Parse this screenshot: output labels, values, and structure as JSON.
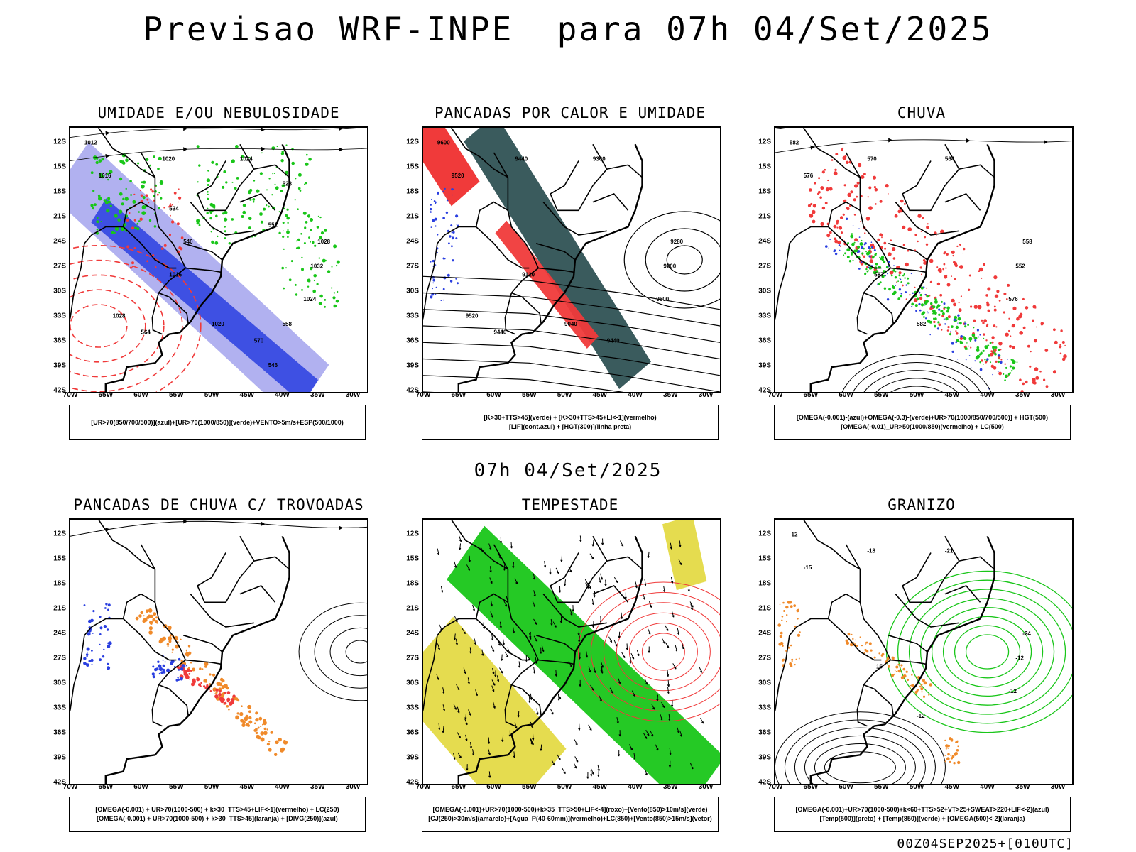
{
  "title": "Previsao WRF-INPE  para 07h 04/Set/2025",
  "subtitle": "07h 04/Set/2025",
  "footer": "00Z04SEP2025+[010UTC]",
  "lat_labels": [
    "12S",
    "15S",
    "18S",
    "21S",
    "24S",
    "27S",
    "30S",
    "33S",
    "36S",
    "39S",
    "42S"
  ],
  "lon_labels": [
    "70W",
    "65W",
    "60W",
    "55W",
    "50W",
    "45W",
    "40W",
    "35W",
    "30W"
  ],
  "colors": {
    "blue": "#2a3fe0",
    "light_blue": "#a9a9ee",
    "green": "#19c619",
    "red": "#f03a3a",
    "orange": "#f08a2a",
    "yellow": "#e2d83c",
    "dark_teal": "#2f5254"
  },
  "panels": [
    {
      "title": "UMIDADE E/OU NEBULOSIDADE",
      "legend": [
        "[UR>70(850/700/500)](azul)+[UR>70(1000/850)](verde)+VENTO>5m/s+ESP(500/1000)"
      ],
      "contour_labels": [
        "1012",
        "1016",
        "1020",
        "1024",
        "1028",
        "1032",
        "1016",
        "1020",
        "1024",
        "1028",
        "564",
        "570",
        "546",
        "540",
        "534",
        "528",
        "552",
        "558"
      ]
    },
    {
      "title": "PANCADAS POR CALOR E UMIDADE",
      "legend": [
        "[K>30+TTS>45](verde) + [K>30+TTS>45+LI<-1](vermelho)",
        "[LIF](cont.azul) + [HGT(300)](linha preta)"
      ],
      "contour_labels": [
        "9600",
        "9520",
        "9440",
        "9360",
        "9280",
        "9200",
        "9120",
        "9040",
        "9600",
        "9520",
        "9440",
        "9440"
      ]
    },
    {
      "title": "CHUVA",
      "legend": [
        "[OMEGA(-0.001)-(azul)+OMEGA(-0.3)-(verde)+UR>70(1000/850/700/500)] + HGT(500)",
        "[OMEGA(-0.01)_UR>50(1000/850)(vermelho) + LC(500)"
      ],
      "contour_labels": [
        "582",
        "576",
        "570",
        "564",
        "558",
        "552",
        "587",
        "582",
        "576"
      ]
    },
    {
      "title": "PANCADAS DE CHUVA C/ TROVOADAS",
      "legend": [
        "[OMEGA(-0.001) + UR>70(1000-500) + k>30_TTS>45+LIF<-1](vermelho) + LC(250)",
        "[OMEGA(-0.001) + UR>70(1000-500) + k>30_TTS>45](laranja) + [DIVG(250)](azul)"
      ],
      "contour_labels": []
    },
    {
      "title": "TEMPESTADE",
      "legend": [
        "[OMEGA(-0.001)+UR>70(1000-500)+k>35_TTS>50+LIF<-4](roxo)+[Vento(850)>10m/s](verde)",
        "[CJ(250)>30m/s](amarelo)+[Agua_P(40-60mm)](vermelho)+LC(850)+[Vento(850)>15m/s](vetor)"
      ],
      "contour_labels": []
    },
    {
      "title": "GRANIZO",
      "legend": [
        "[OMEGA(-0.001)+UR>70(1000-500)+k<60+TTS>52+VT>25+SWEAT>220+LIF<-2](azul)",
        "[Temp(500)](preto) + [Temp(850)](verde) + [OMEGA(500)<-2](laranja)"
      ],
      "contour_labels": [
        "-12",
        "-15",
        "-18",
        "-21",
        "-24",
        "-12",
        "-15",
        "-12",
        "-12"
      ]
    }
  ]
}
